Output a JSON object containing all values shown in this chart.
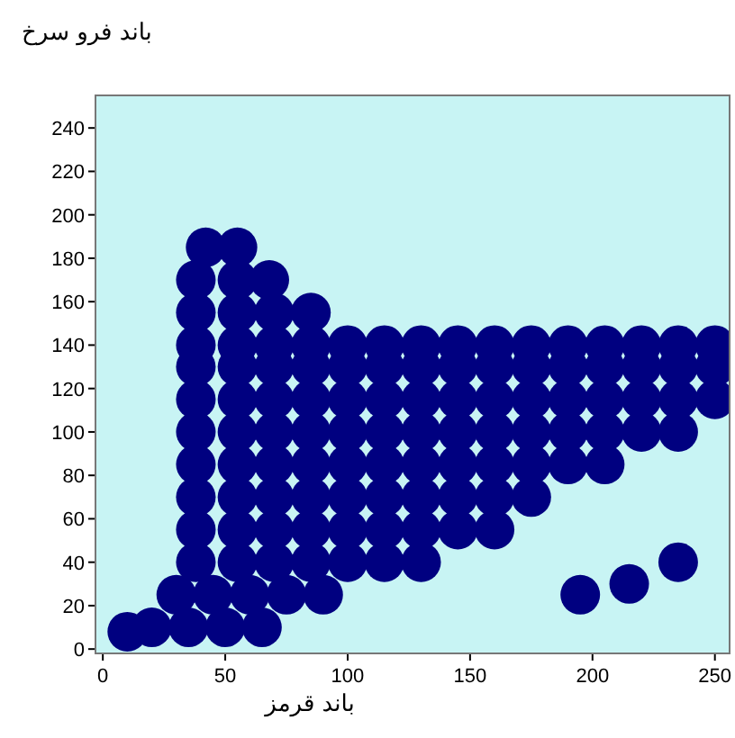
{
  "chart_data": {
    "type": "scatter",
    "xlabel": "باند قرمز",
    "ylabel": "باند فرو سرخ",
    "xlim": [
      -3,
      256
    ],
    "ylim": [
      -2,
      255
    ],
    "xticks": [
      0,
      50,
      100,
      150,
      200,
      250
    ],
    "yticks": [
      0,
      20,
      40,
      60,
      80,
      100,
      120,
      140,
      160,
      180,
      200,
      220,
      240
    ],
    "series": [
      {
        "color": "#000080",
        "x": [
          20,
          35,
          50,
          65,
          30,
          45,
          60,
          75,
          90,
          38,
          55,
          70,
          85,
          100,
          115,
          130,
          38,
          55,
          70,
          85,
          100,
          115,
          130,
          145,
          160,
          38,
          55,
          70,
          85,
          100,
          115,
          130,
          145,
          160,
          175,
          38,
          55,
          70,
          85,
          100,
          115,
          130,
          145,
          160,
          175,
          190,
          205,
          38,
          55,
          70,
          85,
          100,
          115,
          130,
          145,
          160,
          175,
          190,
          205,
          220,
          235,
          38,
          55,
          70,
          85,
          100,
          115,
          130,
          145,
          160,
          175,
          190,
          205,
          220,
          235,
          250,
          38,
          55,
          70,
          85,
          100,
          115,
          130,
          145,
          160,
          175,
          190,
          205,
          220,
          235,
          250,
          38,
          55,
          70,
          85,
          100,
          115,
          130,
          145,
          160,
          175,
          190,
          205,
          220,
          235,
          250,
          38,
          55,
          70,
          85,
          38,
          55,
          68,
          42,
          55,
          10,
          235,
          215,
          195
        ],
        "values": [
          10,
          10,
          10,
          10,
          25,
          25,
          25,
          25,
          25,
          40,
          40,
          40,
          40,
          40,
          40,
          40,
          55,
          55,
          55,
          55,
          55,
          55,
          55,
          55,
          55,
          70,
          70,
          70,
          70,
          70,
          70,
          70,
          70,
          70,
          70,
          85,
          85,
          85,
          85,
          85,
          85,
          85,
          85,
          85,
          85,
          85,
          85,
          100,
          100,
          100,
          100,
          100,
          100,
          100,
          100,
          100,
          100,
          100,
          100,
          100,
          100,
          115,
          115,
          115,
          115,
          115,
          115,
          115,
          115,
          115,
          115,
          115,
          115,
          115,
          115,
          115,
          130,
          130,
          130,
          130,
          130,
          130,
          130,
          130,
          130,
          130,
          130,
          130,
          130,
          130,
          130,
          140,
          140,
          140,
          140,
          140,
          140,
          140,
          140,
          140,
          140,
          140,
          140,
          140,
          140,
          140,
          155,
          155,
          155,
          155,
          170,
          170,
          170,
          185,
          185,
          8,
          40,
          30,
          25
        ]
      }
    ]
  }
}
